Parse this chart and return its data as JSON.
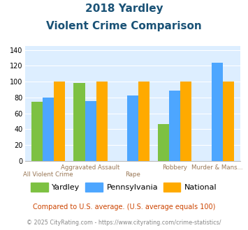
{
  "title_line1": "2018 Yardley",
  "title_line2": "Violent Crime Comparison",
  "categories": [
    "All Violent Crime",
    "Aggravated Assault",
    "Rape",
    "Robbery",
    "Murder & Mans..."
  ],
  "top_labels": [
    "",
    "Aggravated Assault",
    "",
    "Robbery",
    "Murder & Mans..."
  ],
  "bottom_labels": [
    "All Violent Crime",
    "",
    "Rape",
    "",
    ""
  ],
  "yardley": [
    75,
    98,
    0,
    47,
    0
  ],
  "pennsylvania": [
    80,
    76,
    83,
    89,
    124
  ],
  "national": [
    100,
    100,
    100,
    100,
    100
  ],
  "color_yardley": "#7dc142",
  "color_pennsylvania": "#4da6ff",
  "color_national": "#ffaa00",
  "ylim": [
    0,
    145
  ],
  "yticks": [
    0,
    20,
    40,
    60,
    80,
    100,
    120,
    140
  ],
  "bg_color": "#ddeeff",
  "title_color": "#1a5276",
  "xlabel_color": "#997755",
  "legend_label_yardley": "Yardley",
  "legend_label_pennsylvania": "Pennsylvania",
  "legend_label_national": "National",
  "footnote1": "Compared to U.S. average. (U.S. average equals 100)",
  "footnote2": "© 2025 CityRating.com - https://www.cityrating.com/crime-statistics/",
  "footnote1_color": "#cc4400",
  "footnote2_color": "#888888"
}
